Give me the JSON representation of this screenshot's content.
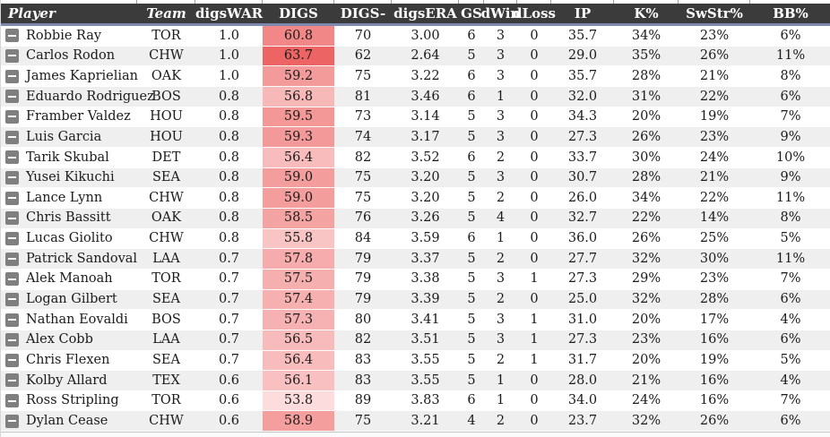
{
  "table": {
    "columns": [
      {
        "id": "player",
        "label": "Player",
        "italic": true,
        "align": "left"
      },
      {
        "id": "team",
        "label": "Team",
        "italic": true,
        "align": "center"
      },
      {
        "id": "digswar",
        "label": "digsWAR",
        "italic": false,
        "align": "center"
      },
      {
        "id": "digs",
        "label": "DIGS",
        "italic": false,
        "align": "center"
      },
      {
        "id": "digsminus",
        "label": "DIGS-",
        "italic": false,
        "align": "center"
      },
      {
        "id": "digsera",
        "label": "digsERA",
        "italic": false,
        "align": "center"
      },
      {
        "id": "gs",
        "label": "GS",
        "italic": false,
        "align": "center"
      },
      {
        "id": "dwin",
        "label": "dWin",
        "italic": false,
        "align": "center"
      },
      {
        "id": "dloss",
        "label": "dLoss",
        "italic": false,
        "align": "center"
      },
      {
        "id": "ip",
        "label": "IP",
        "italic": false,
        "align": "center"
      },
      {
        "id": "kpct",
        "label": "K%",
        "italic": false,
        "align": "center"
      },
      {
        "id": "swstrpct",
        "label": "SwStr%",
        "italic": false,
        "align": "center"
      },
      {
        "id": "bbpct",
        "label": "BB%",
        "italic": false,
        "align": "center"
      }
    ],
    "rows": [
      [
        "Robbie Ray",
        "TOR",
        "1.0",
        "60.8",
        "70",
        "3.00",
        "6",
        "3",
        "0",
        "35.7",
        "34%",
        "23%",
        "6%"
      ],
      [
        "Carlos Rodon",
        "CHW",
        "1.0",
        "63.7",
        "62",
        "2.64",
        "5",
        "3",
        "0",
        "29.0",
        "35%",
        "26%",
        "11%"
      ],
      [
        "James Kaprielian",
        "OAK",
        "1.0",
        "59.2",
        "75",
        "3.22",
        "6",
        "3",
        "0",
        "35.7",
        "28%",
        "21%",
        "8%"
      ],
      [
        "Eduardo Rodriguez",
        "BOS",
        "0.8",
        "56.8",
        "81",
        "3.46",
        "6",
        "1",
        "0",
        "32.0",
        "31%",
        "22%",
        "6%"
      ],
      [
        "Framber Valdez",
        "HOU",
        "0.8",
        "59.5",
        "73",
        "3.14",
        "5",
        "3",
        "0",
        "34.3",
        "20%",
        "19%",
        "7%"
      ],
      [
        "Luis Garcia",
        "HOU",
        "0.8",
        "59.3",
        "74",
        "3.17",
        "5",
        "3",
        "0",
        "27.3",
        "26%",
        "23%",
        "9%"
      ],
      [
        "Tarik Skubal",
        "DET",
        "0.8",
        "56.4",
        "82",
        "3.52",
        "6",
        "2",
        "0",
        "33.7",
        "30%",
        "24%",
        "10%"
      ],
      [
        "Yusei Kikuchi",
        "SEA",
        "0.8",
        "59.0",
        "75",
        "3.20",
        "5",
        "3",
        "0",
        "30.7",
        "28%",
        "21%",
        "9%"
      ],
      [
        "Lance Lynn",
        "CHW",
        "0.8",
        "59.0",
        "75",
        "3.20",
        "5",
        "2",
        "0",
        "26.0",
        "34%",
        "22%",
        "11%"
      ],
      [
        "Chris Bassitt",
        "OAK",
        "0.8",
        "58.5",
        "76",
        "3.26",
        "5",
        "4",
        "0",
        "32.7",
        "22%",
        "14%",
        "8%"
      ],
      [
        "Lucas Giolito",
        "CHW",
        "0.8",
        "55.8",
        "84",
        "3.59",
        "6",
        "1",
        "0",
        "36.0",
        "26%",
        "25%",
        "5%"
      ],
      [
        "Patrick Sandoval",
        "LAA",
        "0.7",
        "57.8",
        "79",
        "3.37",
        "5",
        "2",
        "0",
        "27.7",
        "32%",
        "30%",
        "11%"
      ],
      [
        "Alek Manoah",
        "TOR",
        "0.7",
        "57.5",
        "79",
        "3.38",
        "5",
        "3",
        "1",
        "27.3",
        "29%",
        "23%",
        "7%"
      ],
      [
        "Logan Gilbert",
        "SEA",
        "0.7",
        "57.4",
        "79",
        "3.39",
        "5",
        "2",
        "0",
        "25.0",
        "32%",
        "28%",
        "6%"
      ],
      [
        "Nathan Eovaldi",
        "BOS",
        "0.7",
        "57.3",
        "80",
        "3.41",
        "5",
        "3",
        "1",
        "31.0",
        "20%",
        "17%",
        "4%"
      ],
      [
        "Alex Cobb",
        "LAA",
        "0.7",
        "56.5",
        "82",
        "3.51",
        "5",
        "3",
        "1",
        "27.3",
        "23%",
        "16%",
        "6%"
      ],
      [
        "Chris Flexen",
        "SEA",
        "0.7",
        "56.4",
        "83",
        "3.55",
        "5",
        "2",
        "1",
        "31.7",
        "20%",
        "19%",
        "5%"
      ],
      [
        "Kolby Allard",
        "TEX",
        "0.6",
        "56.1",
        "83",
        "3.55",
        "5",
        "1",
        "0",
        "28.0",
        "21%",
        "16%",
        "4%"
      ],
      [
        "Ross Stripling",
        "TOR",
        "0.6",
        "53.8",
        "89",
        "3.83",
        "6",
        "1",
        "0",
        "34.0",
        "24%",
        "16%",
        "7%"
      ],
      [
        "Dylan Cease",
        "CHW",
        "0.6",
        "58.9",
        "75",
        "3.21",
        "4",
        "2",
        "0",
        "23.7",
        "32%",
        "26%",
        "6%"
      ]
    ],
    "heatmap": {
      "column": "digs",
      "min": 53.8,
      "max": 63.7,
      "light_rgb": [
        252,
        220,
        220
      ],
      "dark_rgb": [
        236,
        100,
        100
      ]
    },
    "colors": {
      "header_bg": "#3b3b3b",
      "header_text": "#ffffff",
      "divider_blue": "#7e89ad",
      "row_bg": "#ffffff",
      "row_alt_bg": "#efefef",
      "icon_bg": "#7f7f7f",
      "text": "#1b1b1b"
    }
  }
}
